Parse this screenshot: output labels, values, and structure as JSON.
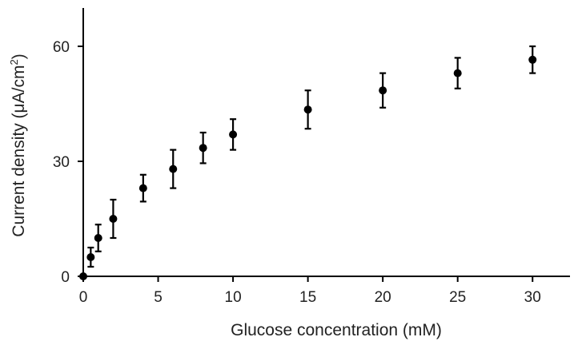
{
  "chart_data": {
    "type": "scatter",
    "xlabel": "Glucose concentration (mM)",
    "ylabel": "Current density (μA/cm²)",
    "ylabel_main": "Current density (μA/cm",
    "ylabel_sup": "2",
    "ylabel_end": ")",
    "xlim": [
      0,
      32.5
    ],
    "ylim": [
      0,
      70
    ],
    "x_ticks": [
      0,
      5,
      10,
      15,
      20,
      25,
      30
    ],
    "x_tick_labels": [
      "0",
      "5",
      "10",
      "15",
      "20",
      "25",
      "30"
    ],
    "y_ticks": [
      0,
      30,
      60
    ],
    "y_tick_labels": [
      "0",
      "30",
      "60"
    ],
    "grid": false,
    "legend": "none",
    "marker_color": "#000000",
    "points": [
      {
        "x": 0,
        "y": 0,
        "err": 0
      },
      {
        "x": 0.5,
        "y": 5,
        "err": 2.5
      },
      {
        "x": 1,
        "y": 10,
        "err": 3.5
      },
      {
        "x": 2,
        "y": 15,
        "err": 5
      },
      {
        "x": 4,
        "y": 23,
        "err": 3.5
      },
      {
        "x": 6,
        "y": 28,
        "err": 5
      },
      {
        "x": 8,
        "y": 33.5,
        "err": 4
      },
      {
        "x": 10,
        "y": 37,
        "err": 4
      },
      {
        "x": 15,
        "y": 43.5,
        "err": 5
      },
      {
        "x": 20,
        "y": 48.5,
        "err": 4.5
      },
      {
        "x": 25,
        "y": 53,
        "err": 4
      },
      {
        "x": 30,
        "y": 56.5,
        "err": 3.5
      }
    ]
  }
}
